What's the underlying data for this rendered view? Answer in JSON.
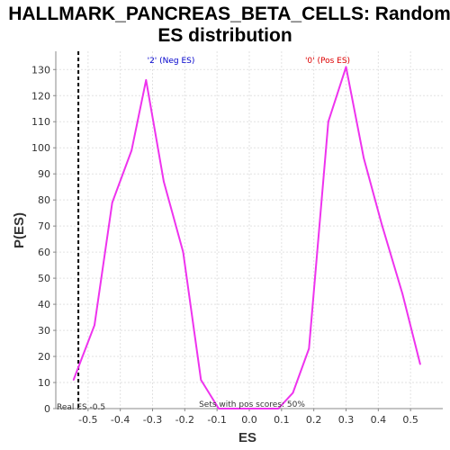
{
  "chart_data": {
    "type": "line",
    "title_line1": "HALLMARK_PANCREAS_BETA_CELLS: Random",
    "title_line2": "ES distribution",
    "xlabel": "ES",
    "ylabel": "P(ES)",
    "xlim": [
      -0.6,
      0.6
    ],
    "ylim": [
      0,
      137
    ],
    "xticks": [
      -0.5,
      -0.4,
      -0.3,
      -0.2,
      -0.1,
      0.0,
      0.1,
      0.2,
      0.3,
      0.4,
      0.5
    ],
    "xtick_labels": [
      "-0.5",
      "-0.4",
      "-0.3",
      "-0.2",
      "-0.1",
      "0.0",
      "0.1",
      "0.2",
      "0.3",
      "0.4",
      "0.5"
    ],
    "yticks": [
      0,
      10,
      20,
      30,
      40,
      50,
      60,
      70,
      80,
      90,
      100,
      110,
      120,
      130
    ],
    "ytick_labels": [
      "0",
      "10",
      "20",
      "30",
      "40",
      "50",
      "60",
      "70",
      "80",
      "90",
      "100",
      "110",
      "120",
      "130"
    ],
    "grid": true,
    "series": [
      {
        "color": "#ee33ee",
        "x": [
          -0.545,
          -0.48,
          -0.425,
          -0.365,
          -0.32,
          -0.265,
          -0.205,
          -0.15,
          -0.095,
          0.0,
          0.09,
          0.135,
          0.185,
          0.245,
          0.3,
          0.355,
          0.41,
          0.475,
          0.53
        ],
        "y": [
          11,
          32,
          79,
          99,
          126,
          87,
          60,
          11,
          0,
          0,
          0,
          6,
          23,
          110,
          131,
          96,
          71,
          44,
          17
        ]
      }
    ],
    "real_es": {
      "value": -0.53,
      "color": "#000000",
      "label": "Real ES -0.5"
    },
    "annotations": {
      "neg_label": "'2' (Neg ES)",
      "neg_color": "#0000cc",
      "pos_label": "'0' (Pos ES)",
      "pos_color": "#dd0000",
      "pos_scores_label": "Sets with pos scores: 50%"
    }
  }
}
